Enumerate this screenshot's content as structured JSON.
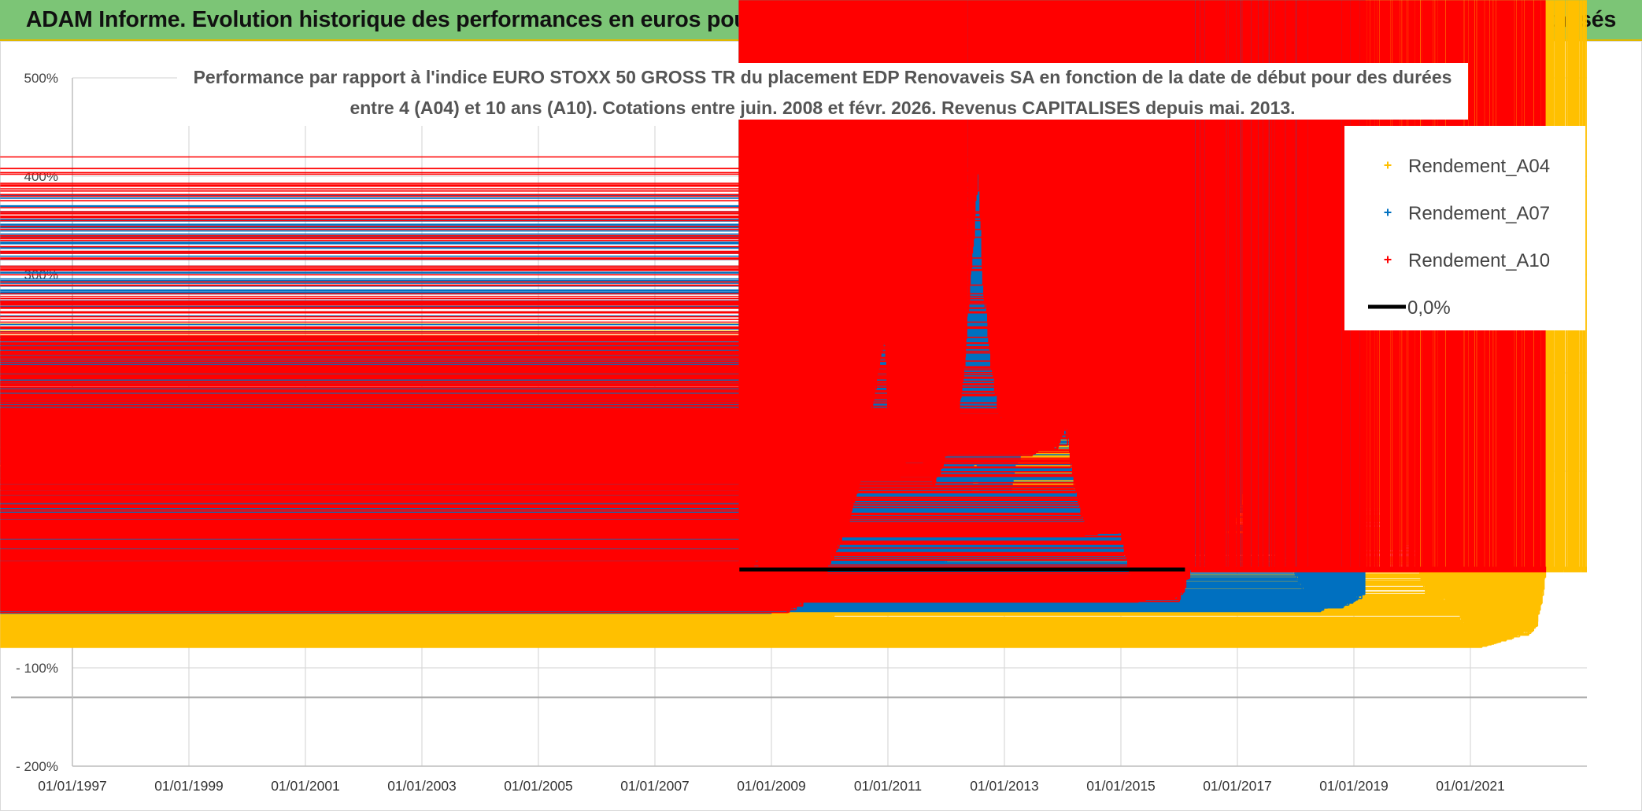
{
  "header": {
    "title": "ADAM Informe. Evolution historique des performances en euros pour des détentions de 4 ans (A04) à 10 ans (A10) avec les revenus connus capitalisés"
  },
  "chart_data": {
    "type": "scatter",
    "title_lines": [
      "Performance par rapport à l'indice EURO STOXX 50 GROSS TR  du placement EDP Renovaveis SA en fonction de la date de début pour des durées",
      "entre 4 (A04) et 10 ans (A10). Cotations entre juin. 2008 et févr. 2026. Revenus CAPITALISES depuis mai. 2013."
    ],
    "xlabel": "",
    "ylabel": "",
    "xlim": [
      1997.0,
      2023.0
    ],
    "ylim": [
      -200,
      500
    ],
    "grid": true,
    "y_ticks": [
      {
        "value": 500,
        "label": "500%"
      },
      {
        "value": 400,
        "label": "400%"
      },
      {
        "value": 300,
        "label": "300%"
      },
      {
        "value": 200,
        "label": "200%"
      },
      {
        "value": 100,
        "label": "100%"
      },
      {
        "value": 0,
        "label": "0%"
      },
      {
        "value": -100,
        "label": "- 100%"
      },
      {
        "value": -200,
        "label": "- 200%"
      }
    ],
    "x_ticks": [
      {
        "value": 1997,
        "label": "01/01/1997"
      },
      {
        "value": 1999,
        "label": "01/01/1999"
      },
      {
        "value": 2001,
        "label": "01/01/2001"
      },
      {
        "value": 2003,
        "label": "01/01/2003"
      },
      {
        "value": 2005,
        "label": "01/01/2005"
      },
      {
        "value": 2007,
        "label": "01/01/2007"
      },
      {
        "value": 2009,
        "label": "01/01/2009"
      },
      {
        "value": 2011,
        "label": "01/01/2011"
      },
      {
        "value": 2013,
        "label": "01/01/2013"
      },
      {
        "value": 2015,
        "label": "01/01/2015"
      },
      {
        "value": 2017,
        "label": "01/01/2017"
      },
      {
        "value": 2019,
        "label": "01/01/2019"
      },
      {
        "value": 2021,
        "label": "01/01/2021"
      }
    ],
    "reference_line_y": -130,
    "legend_position": "top-right",
    "series": [
      {
        "name": "Rendement_A04",
        "color": "#ffc000",
        "marker": "+",
        "points": [
          [
            2008.45,
            -52
          ],
          [
            2008.6,
            -55
          ],
          [
            2008.8,
            -48
          ],
          [
            2009.0,
            -55
          ],
          [
            2009.2,
            -60
          ],
          [
            2009.5,
            -56
          ],
          [
            2009.8,
            -52
          ],
          [
            2010.0,
            -48
          ],
          [
            2010.3,
            -30
          ],
          [
            2010.6,
            -15
          ],
          [
            2010.9,
            -5
          ],
          [
            2011.1,
            -2
          ],
          [
            2011.3,
            -10
          ],
          [
            2011.5,
            -5
          ],
          [
            2011.7,
            -15
          ],
          [
            2011.9,
            0
          ],
          [
            2012.1,
            15
          ],
          [
            2012.3,
            40
          ],
          [
            2012.45,
            70
          ],
          [
            2012.55,
            85
          ],
          [
            2012.65,
            55
          ],
          [
            2012.8,
            10
          ],
          [
            2013.0,
            0
          ],
          [
            2013.2,
            15
          ],
          [
            2013.5,
            25
          ],
          [
            2013.8,
            30
          ],
          [
            2014.0,
            35
          ],
          [
            2014.3,
            25
          ],
          [
            2014.6,
            35
          ],
          [
            2014.9,
            30
          ],
          [
            2015.2,
            25
          ],
          [
            2015.5,
            30
          ],
          [
            2015.8,
            30
          ],
          [
            2016.0,
            25
          ],
          [
            2016.2,
            45
          ],
          [
            2016.4,
            60
          ],
          [
            2016.6,
            55
          ],
          [
            2016.8,
            80
          ],
          [
            2016.95,
            190
          ],
          [
            2017.05,
            245
          ],
          [
            2017.2,
            130
          ],
          [
            2017.4,
            120
          ],
          [
            2017.6,
            140
          ],
          [
            2017.8,
            130
          ],
          [
            2018.0,
            150
          ],
          [
            2018.2,
            165
          ],
          [
            2018.4,
            125
          ],
          [
            2018.6,
            140
          ],
          [
            2018.8,
            150
          ],
          [
            2019.0,
            120
          ],
          [
            2019.2,
            80
          ],
          [
            2019.4,
            70
          ],
          [
            2019.6,
            45
          ],
          [
            2019.8,
            25
          ],
          [
            2020.0,
            30
          ],
          [
            2020.15,
            -5
          ],
          [
            2020.3,
            -35
          ],
          [
            2020.6,
            -30
          ],
          [
            2020.8,
            -40
          ],
          [
            2021.0,
            -65
          ],
          [
            2021.2,
            -75
          ],
          [
            2021.5,
            -70
          ],
          [
            2021.8,
            -65
          ],
          [
            2022.0,
            -62
          ],
          [
            2022.15,
            -55
          ],
          [
            2022.3,
            0
          ],
          [
            2022.6,
            0
          ],
          [
            2022.9,
            0
          ],
          [
            2023.0,
            0
          ]
        ]
      },
      {
        "name": "Rendement_A07",
        "color": "#0070c0",
        "marker": "+",
        "points": [
          [
            2008.45,
            -35
          ],
          [
            2008.6,
            -30
          ],
          [
            2008.8,
            -25
          ],
          [
            2009.0,
            -40
          ],
          [
            2009.2,
            -35
          ],
          [
            2009.5,
            -30
          ],
          [
            2009.8,
            -35
          ],
          [
            2010.0,
            -25
          ],
          [
            2010.3,
            -5
          ],
          [
            2010.6,
            5
          ],
          [
            2010.9,
            10
          ],
          [
            2011.1,
            5
          ],
          [
            2011.3,
            20
          ],
          [
            2011.5,
            10
          ],
          [
            2011.7,
            5
          ],
          [
            2011.9,
            0
          ],
          [
            2012.1,
            20
          ],
          [
            2012.3,
            40
          ],
          [
            2012.45,
            90
          ],
          [
            2012.5,
            120
          ],
          [
            2012.6,
            80
          ],
          [
            2012.8,
            50
          ],
          [
            2013.0,
            55
          ],
          [
            2013.2,
            110
          ],
          [
            2013.4,
            130
          ],
          [
            2013.6,
            140
          ],
          [
            2013.8,
            180
          ],
          [
            2013.95,
            250
          ],
          [
            2014.05,
            320
          ],
          [
            2014.15,
            380
          ],
          [
            2014.25,
            230
          ],
          [
            2014.4,
            160
          ],
          [
            2014.6,
            150
          ],
          [
            2014.8,
            165
          ],
          [
            2015.0,
            140
          ],
          [
            2015.2,
            130
          ],
          [
            2015.4,
            180
          ],
          [
            2015.6,
            200
          ],
          [
            2015.8,
            225
          ],
          [
            2015.95,
            200
          ],
          [
            2016.05,
            100
          ],
          [
            2016.2,
            70
          ],
          [
            2016.4,
            60
          ],
          [
            2016.6,
            50
          ],
          [
            2016.8,
            40
          ],
          [
            2017.0,
            60
          ],
          [
            2017.1,
            80
          ],
          [
            2017.2,
            40
          ],
          [
            2017.4,
            20
          ],
          [
            2017.6,
            30
          ],
          [
            2017.8,
            20
          ],
          [
            2018.0,
            0
          ],
          [
            2018.2,
            -30
          ],
          [
            2018.4,
            -40
          ],
          [
            2018.6,
            -35
          ],
          [
            2018.8,
            -35
          ],
          [
            2019.0,
            -30
          ],
          [
            2019.2,
            -22
          ]
        ]
      },
      {
        "name": "Rendement_A10",
        "color": "#ff0000",
        "marker": "+",
        "points": [
          [
            2008.45,
            -20
          ],
          [
            2008.6,
            -15
          ],
          [
            2008.75,
            15
          ],
          [
            2008.9,
            -15
          ],
          [
            2009.1,
            -35
          ],
          [
            2009.3,
            -40
          ],
          [
            2009.6,
            -30
          ],
          [
            2009.85,
            -10
          ],
          [
            2010.1,
            20
          ],
          [
            2010.3,
            50
          ],
          [
            2010.5,
            90
          ],
          [
            2010.7,
            160
          ],
          [
            2010.85,
            210
          ],
          [
            2010.95,
            240
          ],
          [
            2011.05,
            120
          ],
          [
            2011.2,
            100
          ],
          [
            2011.4,
            130
          ],
          [
            2011.6,
            110
          ],
          [
            2011.8,
            90
          ],
          [
            2012.0,
            120
          ],
          [
            2012.2,
            150
          ],
          [
            2012.35,
            240
          ],
          [
            2012.45,
            320
          ],
          [
            2012.55,
            410
          ],
          [
            2012.65,
            280
          ],
          [
            2012.8,
            200
          ],
          [
            2012.9,
            160
          ],
          [
            2013.1,
            150
          ],
          [
            2013.3,
            140
          ],
          [
            2013.5,
            120
          ],
          [
            2013.7,
            130
          ],
          [
            2013.9,
            125
          ],
          [
            2014.05,
            150
          ],
          [
            2014.2,
            90
          ],
          [
            2014.4,
            40
          ],
          [
            2014.6,
            40
          ],
          [
            2014.8,
            45
          ],
          [
            2015.0,
            40
          ],
          [
            2015.15,
            0
          ],
          [
            2015.3,
            -30
          ],
          [
            2015.5,
            -25
          ],
          [
            2015.7,
            -20
          ],
          [
            2015.85,
            -22
          ],
          [
            2016.0,
            -28
          ],
          [
            2016.2,
            0
          ],
          [
            2016.6,
            0
          ],
          [
            2017.0,
            0
          ],
          [
            2017.5,
            0
          ],
          [
            2018.0,
            0
          ],
          [
            2018.5,
            0
          ],
          [
            2019.0,
            0
          ],
          [
            2019.5,
            0
          ],
          [
            2020.0,
            0
          ],
          [
            2020.5,
            0
          ],
          [
            2021.0,
            0
          ],
          [
            2021.5,
            0
          ],
          [
            2022.0,
            0
          ],
          [
            2022.3,
            0
          ]
        ]
      },
      {
        "name": "0,0%",
        "color": "#000000",
        "marker": "line",
        "points": [
          [
            2008.45,
            0
          ],
          [
            2016.1,
            0
          ]
        ]
      }
    ]
  }
}
